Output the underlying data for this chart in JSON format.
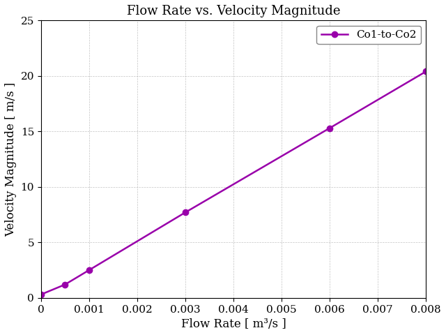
{
  "title": "Flow Rate vs. Velocity Magnitude",
  "xlabel": "Flow Rate [ m³/s ]",
  "ylabel": "Velocity Magnitude [ m/s ]",
  "series": [
    {
      "label": "Co1-to-Co2",
      "x": [
        0.0,
        0.0005,
        0.001,
        0.003,
        0.006,
        0.008
      ],
      "y": [
        0.3,
        1.2,
        2.5,
        7.7,
        15.3,
        20.4
      ],
      "color": "#9900aa",
      "linewidth": 1.8,
      "marker": "o",
      "markersize": 6
    }
  ],
  "xlim": [
    0.0,
    0.008
  ],
  "ylim": [
    0,
    25
  ],
  "xticks": [
    0.0,
    0.001,
    0.002,
    0.003,
    0.004,
    0.005,
    0.006,
    0.007,
    0.008
  ],
  "yticks": [
    0,
    5,
    10,
    15,
    20,
    25
  ],
  "grid": true,
  "legend_loc": "upper right",
  "title_fontsize": 13,
  "label_fontsize": 12,
  "tick_fontsize": 11,
  "legend_fontsize": 11,
  "figure_facecolor": "#ffffff",
  "axes_facecolor": "#ffffff"
}
